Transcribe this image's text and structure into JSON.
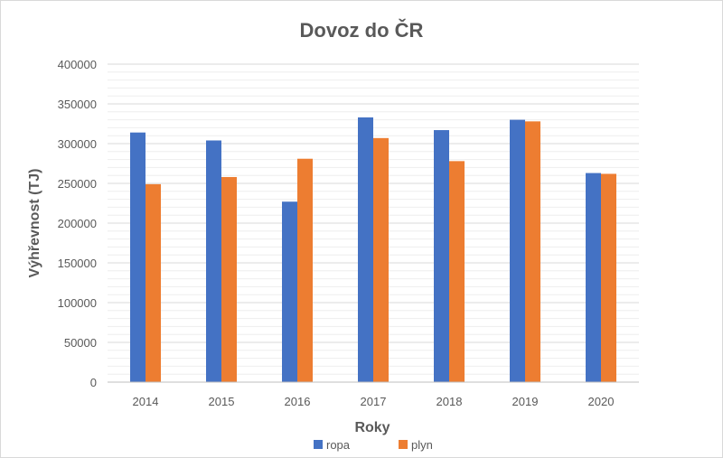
{
  "chart_data": {
    "type": "bar",
    "title": "Dovoz do ČR",
    "xlabel": "Roky",
    "ylabel": "Výhřevnost (TJ)",
    "categories": [
      "2014",
      "2015",
      "2016",
      "2017",
      "2018",
      "2019",
      "2020"
    ],
    "series": [
      {
        "name": "ropa",
        "color": "#4472c4",
        "values": [
          314000,
          304000,
          227000,
          333000,
          317000,
          330000,
          263000
        ]
      },
      {
        "name": "plyn",
        "color": "#ed7d31",
        "values": [
          249000,
          258000,
          281000,
          307000,
          278000,
          328000,
          262000
        ]
      }
    ],
    "ylim": [
      0,
      400000
    ],
    "yticks": [
      "0",
      "50000",
      "100000",
      "150000",
      "200000",
      "250000",
      "300000",
      "350000",
      "400000"
    ],
    "grid": true,
    "legend_position": "bottom"
  }
}
